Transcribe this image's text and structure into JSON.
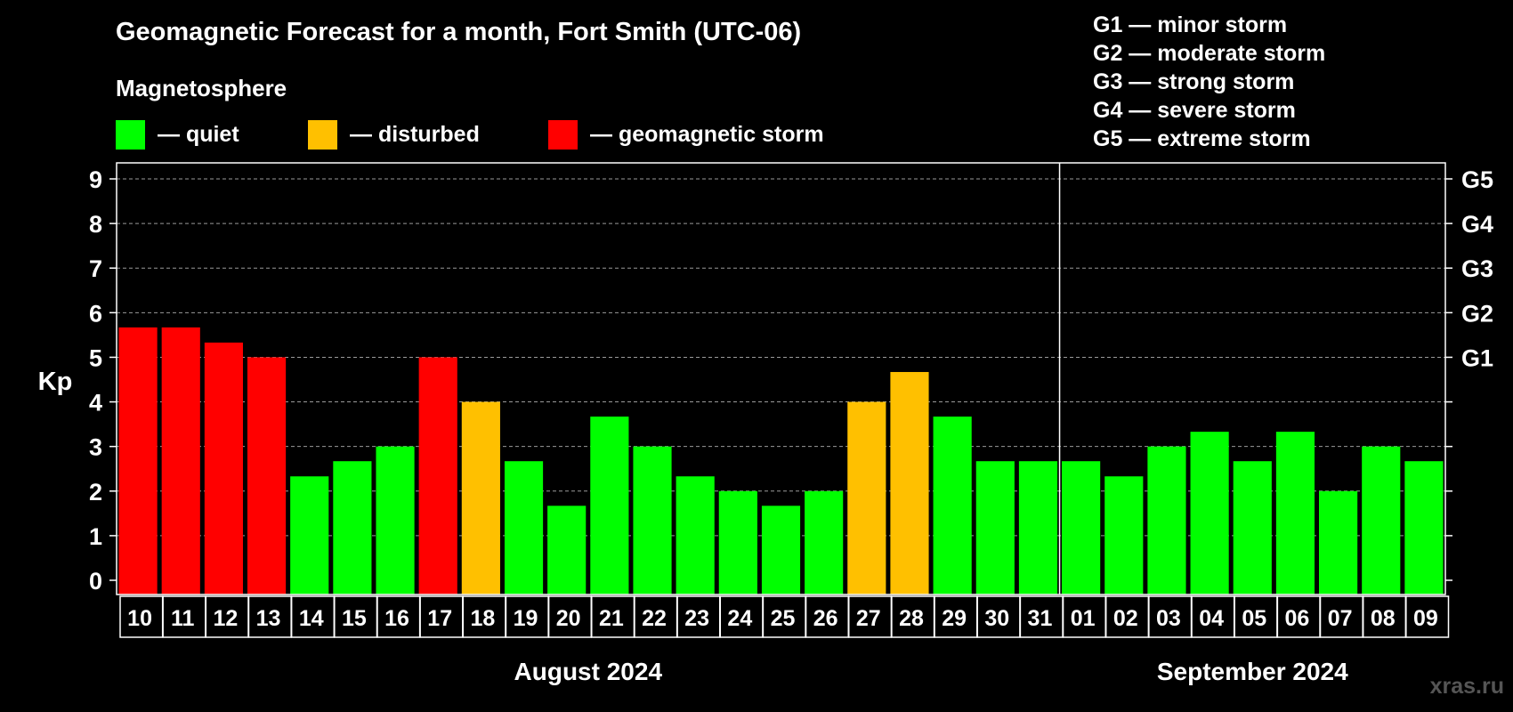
{
  "title": "Geomagnetic Forecast for a month, Fort Smith (UTC-06)",
  "legend": {
    "heading": "Magnetosphere",
    "items": [
      {
        "label": "— quiet",
        "color": "#00ff00"
      },
      {
        "label": "— disturbed",
        "color": "#ffc000"
      },
      {
        "label": "— geomagnetic storm",
        "color": "#ff0000"
      }
    ]
  },
  "g_scale": [
    "G1 — minor storm",
    "G2 — moderate storm",
    "G3 — strong storm",
    "G4 — severe storm",
    "G5 — extreme storm"
  ],
  "watermark": "xras.ru",
  "chart_data": {
    "type": "bar",
    "ylabel": "Kp",
    "ylim": [
      0,
      9
    ],
    "yticks": [
      "0",
      "1",
      "2",
      "3",
      "4",
      "5",
      "6",
      "7",
      "8",
      "9"
    ],
    "right_ticks": [
      {
        "value": 5,
        "label": "G1"
      },
      {
        "value": 6,
        "label": "G2"
      },
      {
        "value": 7,
        "label": "G3"
      },
      {
        "value": 8,
        "label": "G4"
      },
      {
        "value": 9,
        "label": "G5"
      }
    ],
    "grid": "dashed horizontal",
    "categories": [
      "10",
      "11",
      "12",
      "13",
      "14",
      "15",
      "16",
      "17",
      "18",
      "19",
      "20",
      "21",
      "22",
      "23",
      "24",
      "25",
      "26",
      "27",
      "28",
      "29",
      "30",
      "31",
      "01",
      "02",
      "03",
      "04",
      "05",
      "06",
      "07",
      "08",
      "09"
    ],
    "values": [
      5.67,
      5.67,
      5.33,
      5.0,
      2.33,
      2.67,
      3.0,
      5.0,
      4.0,
      2.67,
      1.67,
      3.67,
      3.0,
      2.33,
      2.0,
      1.67,
      2.0,
      4.0,
      4.67,
      3.67,
      2.67,
      2.67,
      2.67,
      2.33,
      3.0,
      3.33,
      2.67,
      3.33,
      2.0,
      3.0,
      2.67
    ],
    "levels": [
      "storm",
      "storm",
      "storm",
      "storm",
      "quiet",
      "quiet",
      "quiet",
      "storm",
      "disturbed",
      "quiet",
      "quiet",
      "quiet",
      "quiet",
      "quiet",
      "quiet",
      "quiet",
      "quiet",
      "disturbed",
      "disturbed",
      "quiet",
      "quiet",
      "quiet",
      "quiet",
      "quiet",
      "quiet",
      "quiet",
      "quiet",
      "quiet",
      "quiet",
      "quiet",
      "quiet"
    ],
    "level_colors": {
      "quiet": "#00ff00",
      "disturbed": "#ffc000",
      "storm": "#ff0000"
    },
    "months": [
      {
        "label": "August 2024",
        "count": 22
      },
      {
        "label": "September 2024",
        "count": 9
      }
    ]
  }
}
